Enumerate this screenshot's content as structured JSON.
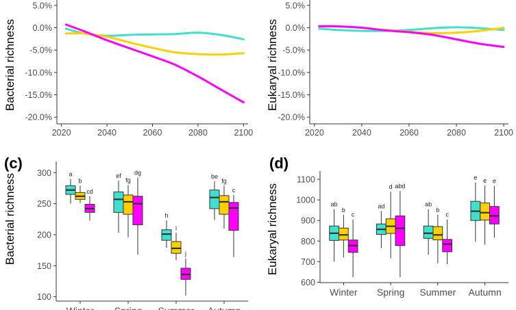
{
  "colors": {
    "s1": "#40E0D0",
    "s2": "#FFD000",
    "s3": "#FF00FF",
    "axis": "#333333",
    "tick_text": "#4d4d4d"
  },
  "chart_data": [
    {
      "id": "a",
      "type": "line",
      "panel_label": "",
      "xlabel": "",
      "ylabel": "Bacterial richness",
      "xlim": [
        2018,
        2102
      ],
      "ylim": [
        -21.5,
        6.2
      ],
      "xticks": [
        2020,
        2040,
        2060,
        2080,
        2100
      ],
      "xtick_labels": [
        "2020",
        "2040",
        "2060",
        "2080",
        "2100"
      ],
      "yticks": [
        5,
        0,
        -5,
        -10,
        -15,
        -20
      ],
      "ytick_labels": [
        "5.0%",
        "0.0%",
        "-5.0%",
        "-10.0%",
        "-15.0%",
        "-20.0%"
      ],
      "series": [
        {
          "name": "series-1",
          "color": "#40E0D0",
          "x": [
            2022,
            2030,
            2040,
            2050,
            2060,
            2070,
            2080,
            2090,
            2100
          ],
          "y": [
            -0.2,
            -1.3,
            -1.8,
            -1.6,
            -1.5,
            -1.4,
            -1.1,
            -1.6,
            -2.6
          ]
        },
        {
          "name": "series-2",
          "color": "#FFD000",
          "x": [
            2022,
            2030,
            2040,
            2050,
            2060,
            2070,
            2080,
            2090,
            2100
          ],
          "y": [
            -1.3,
            -1.3,
            -2.0,
            -3.3,
            -4.5,
            -5.5,
            -5.9,
            -6.0,
            -5.7
          ]
        },
        {
          "name": "series-3",
          "color": "#FF00FF",
          "x": [
            2022,
            2030,
            2040,
            2050,
            2060,
            2070,
            2080,
            2090,
            2100
          ],
          "y": [
            0.7,
            -0.8,
            -2.8,
            -4.6,
            -6.4,
            -8.3,
            -10.9,
            -13.8,
            -16.7
          ]
        }
      ]
    },
    {
      "id": "b",
      "type": "line",
      "panel_label": "",
      "xlabel": "",
      "ylabel": "Eukaryal richness",
      "xlim": [
        2018,
        2102
      ],
      "ylim": [
        -21.5,
        6.2
      ],
      "xticks": [
        2020,
        2040,
        2060,
        2080,
        2100
      ],
      "xtick_labels": [
        "2020",
        "2040",
        "2060",
        "2080",
        "2100"
      ],
      "yticks": [
        5,
        0,
        -5,
        -10,
        -15,
        -20
      ],
      "ytick_labels": [
        "5.0%",
        "0.0%",
        "-5.0%",
        "-10.0%",
        "-15.0%",
        "-20.0%"
      ],
      "series": [
        {
          "name": "series-1",
          "color": "#40E0D0",
          "x": [
            2022,
            2030,
            2040,
            2050,
            2060,
            2070,
            2080,
            2090,
            2100
          ],
          "y": [
            -0.2,
            -0.5,
            -0.7,
            -0.7,
            -0.5,
            -0.1,
            0.1,
            -0.1,
            -0.5
          ]
        },
        {
          "name": "series-2",
          "color": "#FFD000",
          "x": [
            2022,
            2030,
            2040,
            2050,
            2060,
            2070,
            2080,
            2090,
            2100
          ],
          "y": [
            0.4,
            0.3,
            0.0,
            -0.5,
            -0.9,
            -1.2,
            -1.1,
            -0.7,
            0.0
          ]
        },
        {
          "name": "series-3",
          "color": "#FF00FF",
          "x": [
            2022,
            2030,
            2040,
            2050,
            2060,
            2070,
            2080,
            2090,
            2100
          ],
          "y": [
            0.3,
            0.3,
            0.0,
            -0.6,
            -1.0,
            -1.6,
            -2.6,
            -3.6,
            -4.3
          ]
        }
      ]
    },
    {
      "id": "c",
      "type": "box",
      "panel_label": "(c)",
      "xlabel": "",
      "ylabel": "Bacterial richness",
      "ylim": [
        93,
        318
      ],
      "yticks": [
        100,
        150,
        200,
        250,
        300
      ],
      "ytick_labels": [
        "100",
        "150",
        "200",
        "250",
        "300"
      ],
      "categories": [
        "Winter",
        "Spring",
        "Summer",
        "Autumn"
      ],
      "series_names": [
        "series-1",
        "series-2",
        "series-3"
      ],
      "series_colors": [
        "#40E0D0",
        "#FFD000",
        "#FF00FF"
      ],
      "boxes": [
        [
          {
            "min": 250,
            "q1": 265,
            "median": 272,
            "q3": 279,
            "max": 290,
            "label": "a"
          },
          {
            "min": 251,
            "q1": 257,
            "median": 262,
            "q3": 268,
            "max": 279,
            "label": "b"
          },
          {
            "min": 223,
            "q1": 236,
            "median": 242,
            "q3": 249,
            "max": 262,
            "label": "cd"
          }
        ],
        [
          {
            "min": 203,
            "q1": 236,
            "median": 257,
            "q3": 269,
            "max": 287,
            "label": "ef"
          },
          {
            "min": 196,
            "q1": 233,
            "median": 253,
            "q3": 264,
            "max": 280,
            "label": "fg"
          },
          {
            "min": 168,
            "q1": 216,
            "median": 250,
            "q3": 262,
            "max": 292,
            "label": "dg"
          }
        ],
        [
          {
            "min": 179,
            "q1": 191,
            "median": 201,
            "q3": 208,
            "max": 223,
            "label": "h"
          },
          {
            "min": 159,
            "q1": 170,
            "median": 178,
            "q3": 189,
            "max": 203,
            "label": "i"
          },
          {
            "min": 102,
            "q1": 128,
            "median": 136,
            "q3": 146,
            "max": 162,
            "label": "j"
          }
        ],
        [
          {
            "min": 224,
            "q1": 242,
            "median": 260,
            "q3": 272,
            "max": 286,
            "label": "be"
          },
          {
            "min": 210,
            "q1": 233,
            "median": 253,
            "q3": 263,
            "max": 279,
            "label": "fg"
          },
          {
            "min": 164,
            "q1": 207,
            "median": 243,
            "q3": 252,
            "max": 264,
            "label": "c"
          }
        ]
      ]
    },
    {
      "id": "d",
      "type": "box",
      "panel_label": "(d)",
      "xlabel": "",
      "ylabel": "Eukaryal richness",
      "ylim": [
        598,
        1140
      ],
      "yticks": [
        600,
        700,
        800,
        900,
        1000,
        1100
      ],
      "ytick_labels": [
        "600",
        "700",
        "800",
        "900",
        "1000",
        "1100"
      ],
      "categories": [
        "Winter",
        "Spring",
        "Summer",
        "Autumn"
      ],
      "series_names": [
        "series-1",
        "series-2",
        "series-3"
      ],
      "series_colors": [
        "#40E0D0",
        "#FFD000",
        "#FF00FF"
      ],
      "boxes": [
        [
          {
            "min": 700,
            "q1": 803,
            "median": 838,
            "q3": 873,
            "max": 955,
            "label": "ab"
          },
          {
            "min": 720,
            "q1": 805,
            "median": 830,
            "q3": 863,
            "max": 928,
            "label": "b"
          },
          {
            "min": 625,
            "q1": 745,
            "median": 778,
            "q3": 805,
            "max": 905,
            "label": "c"
          }
        ],
        [
          {
            "min": 766,
            "q1": 832,
            "median": 857,
            "q3": 883,
            "max": 946,
            "label": "ad"
          },
          {
            "min": 716,
            "q1": 837,
            "median": 872,
            "q3": 908,
            "max": 1040,
            "label": "d"
          },
          {
            "min": 625,
            "q1": 778,
            "median": 862,
            "q3": 922,
            "max": 1043,
            "label": "abd"
          }
        ],
        [
          {
            "min": 733,
            "q1": 813,
            "median": 838,
            "q3": 873,
            "max": 955,
            "label": "ab"
          },
          {
            "min": 692,
            "q1": 806,
            "median": 830,
            "q3": 870,
            "max": 928,
            "label": "b"
          },
          {
            "min": 688,
            "q1": 748,
            "median": 785,
            "q3": 808,
            "max": 905,
            "label": "c"
          }
        ],
        [
          {
            "min": 797,
            "q1": 900,
            "median": 945,
            "q3": 993,
            "max": 1085,
            "label": "e"
          },
          {
            "min": 782,
            "q1": 902,
            "median": 938,
            "q3": 985,
            "max": 1070,
            "label": "e"
          },
          {
            "min": 816,
            "q1": 883,
            "median": 922,
            "q3": 968,
            "max": 1068,
            "label": "e"
          }
        ]
      ]
    }
  ]
}
